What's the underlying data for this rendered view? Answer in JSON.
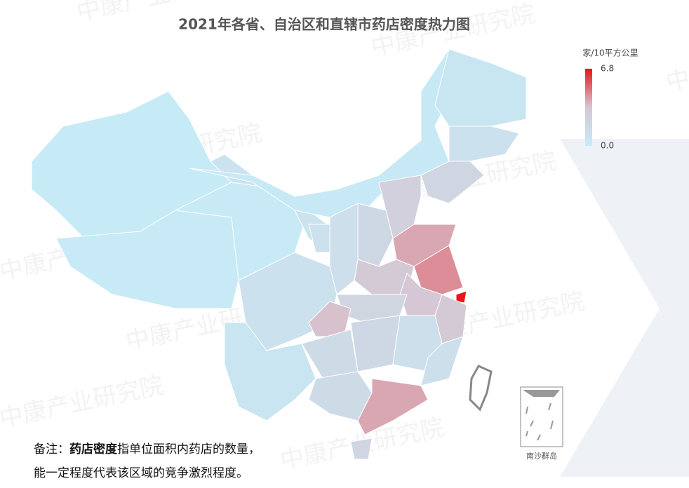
{
  "chart_data": {
    "type": "choropleth",
    "title": "2021年各省、自治区和直辖市药店密度热力图",
    "legend_title": "家/10平方公里",
    "scale_ticks": [
      6.8,
      {
        "value": 0,
        "label": "0.0"
      }
    ],
    "scale_lim": [
      0,
      6.8
    ],
    "color_scale": [
      "#c6ecf8",
      "#d6c6d2",
      "#e8161c"
    ],
    "values": [
      0.1,
      0.15,
      0.2,
      0.8,
      0.3,
      0.5,
      1.0,
      2.0,
      2.5,
      1.8,
      4.0,
      3.0,
      1.2,
      1.0,
      4.5,
      6.8,
      3.2,
      3.0,
      2.0,
      1.0,
      3.5,
      1.8,
      1.2,
      1.2,
      1.5,
      0.6,
      1.5,
      4.0,
      2.0
    ],
    "inset_label": "南沙群岛",
    "watermark": "中康产业研究院"
  },
  "note": {
    "prefix": "备注：",
    "term": "药店密度",
    "line1": "指单位面积内药店的数量，",
    "line2": "能一定程度代表该区域的竞争激烈程度。"
  }
}
